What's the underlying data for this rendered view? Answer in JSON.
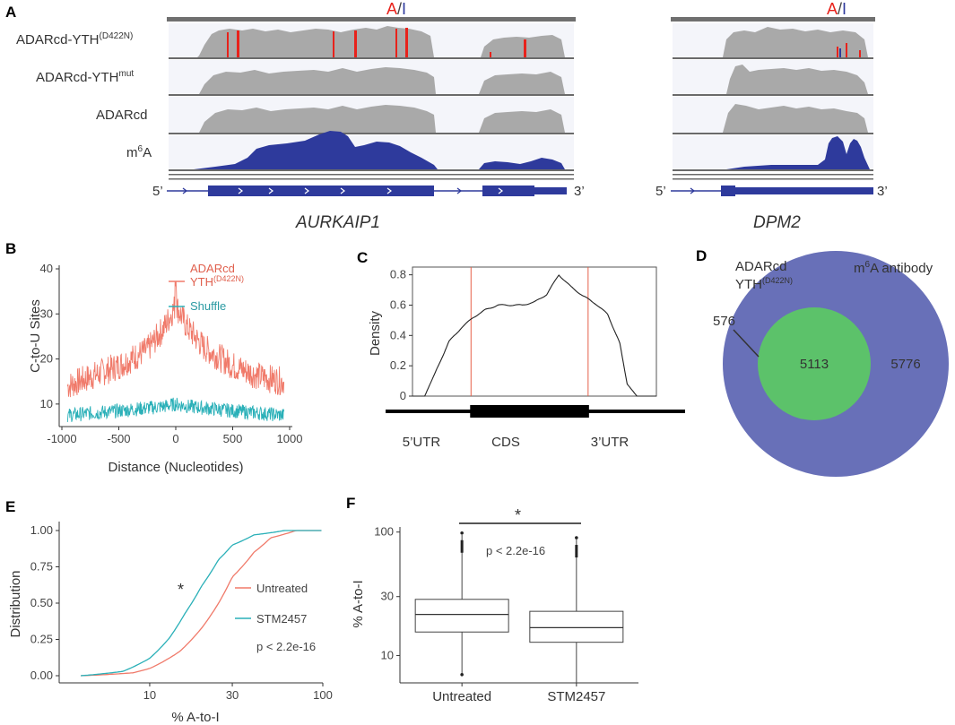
{
  "panels": {
    "A": "A",
    "B": "B",
    "C": "C",
    "D": "D",
    "E": "E",
    "F": "F"
  },
  "colors": {
    "editing_track": "#a9a9a9",
    "m6a_track": "#2e3a9c",
    "a_site": "#e8221b",
    "i_site": "#2e3a9c",
    "adarcd_line": "#f07a6a",
    "shuffle_line": "#2ab0b8",
    "untreated_line": "#f07a6a",
    "stm2457_line": "#2ab0b8",
    "venn_m6a": "#6870b8",
    "venn_overlap": "#5cc26a",
    "venn_adarcd": "#f0ea1a",
    "utr_line": "#e6604a"
  },
  "panel_a": {
    "a_letter": "A",
    "slash": "/",
    "i_letter": "I",
    "tracks": [
      {
        "label": "ADARcd-YTH",
        "sup": "(D422N)"
      },
      {
        "label": "ADARcd-YTH",
        "sup": "mut"
      },
      {
        "label": "ADARcd",
        "sup": ""
      },
      {
        "label": "m",
        "sup": "6",
        "suffix": "A"
      }
    ],
    "genes": [
      {
        "name": "AURKAIP1",
        "five": "5’",
        "three": "3’"
      },
      {
        "name": "DPM2",
        "five": "5’",
        "three": "3’"
      }
    ]
  },
  "chart_data": [
    {
      "panel": "B",
      "type": "line",
      "title": "",
      "xlabel": "Distance (Nucleotides)",
      "ylabel": "C-to-U Sites",
      "xlim": [
        -1000,
        1000
      ],
      "ylim": [
        5,
        40
      ],
      "xticks": [
        -1000,
        -500,
        0,
        500,
        1000
      ],
      "xtick_labels": [
        "-1000",
        "-500",
        "0",
        "500",
        "1000"
      ],
      "yticks": [
        10,
        20,
        30,
        40
      ],
      "ytick_labels": [
        "10",
        "20",
        "30",
        "40"
      ],
      "series": [
        {
          "name": "ADARcd",
          "name_line2": "YTH",
          "name_sup": "(D422N)",
          "x": [
            -950,
            -750,
            -500,
            -250,
            -100,
            0,
            100,
            250,
            500,
            750,
            950
          ],
          "y": [
            14,
            16,
            18.5,
            22,
            27,
            32,
            27,
            22.5,
            18.5,
            16,
            15
          ]
        },
        {
          "name": "Shuffle",
          "x": [
            -950,
            -500,
            -100,
            0,
            100,
            500,
            950
          ],
          "y": [
            7.5,
            8.5,
            9.5,
            10,
            9.5,
            8.5,
            7.5
          ]
        }
      ]
    },
    {
      "panel": "C",
      "type": "line",
      "xlabel": "",
      "ylabel": "Density",
      "ylim": [
        0,
        0.8
      ],
      "yticks": [
        0,
        0.2,
        0.4,
        0.6,
        0.8
      ],
      "ytick_labels": [
        "0",
        "0.2",
        "0.4",
        "0.6",
        "0.8"
      ],
      "regions": [
        "5’UTR",
        "CDS",
        "3’UTR"
      ],
      "x": [
        0,
        0.05,
        0.1,
        0.15,
        0.2,
        0.25,
        0.3,
        0.35,
        0.4,
        0.45,
        0.5,
        0.55,
        0.6,
        0.65,
        0.7,
        0.75,
        0.8,
        0.85,
        0.88,
        0.92,
        1
      ],
      "y": [
        0,
        0,
        0.18,
        0.36,
        0.45,
        0.52,
        0.57,
        0.6,
        0.6,
        0.6,
        0.62,
        0.67,
        0.8,
        0.72,
        0.66,
        0.61,
        0.54,
        0.35,
        0.08,
        0,
        0
      ],
      "boundaries": [
        0.24,
        0.72
      ]
    },
    {
      "panel": "D",
      "type": "venn",
      "sets": [
        {
          "name": "ADARcd",
          "name_line2": "YTH",
          "name_sup": "(D422N)",
          "only": 576
        },
        {
          "name_prefix": "m",
          "name_sup": "6",
          "name": "A antibody",
          "only": 5776
        }
      ],
      "overlap": 5113,
      "labels": {
        "left_only": "576",
        "overlap": "5113",
        "right_only": "5776"
      }
    },
    {
      "panel": "E",
      "type": "line",
      "xlabel": "% A-to-I",
      "ylabel": "Distribution",
      "xscale": "log",
      "xlim": [
        3,
        100
      ],
      "ylim": [
        0,
        1
      ],
      "xticks": [
        10,
        30,
        100
      ],
      "xtick_labels": [
        "10",
        "30",
        "100"
      ],
      "yticks": [
        0,
        0.25,
        0.5,
        0.75,
        1
      ],
      "ytick_labels": [
        "0.00",
        "0.25",
        "0.50",
        "0.75",
        "1.00"
      ],
      "series": [
        {
          "name": "Untreated",
          "x": [
            4,
            8,
            10,
            15,
            20,
            25,
            30,
            40,
            50,
            70,
            100
          ],
          "y": [
            0,
            0.02,
            0.05,
            0.17,
            0.33,
            0.5,
            0.68,
            0.85,
            0.95,
            1.0,
            1.0
          ]
        },
        {
          "name": "STM2457",
          "x": [
            4,
            7,
            10,
            13,
            16,
            20,
            25,
            30,
            40,
            60,
            100
          ],
          "y": [
            0,
            0.03,
            0.12,
            0.26,
            0.43,
            0.62,
            0.8,
            0.9,
            0.97,
            1.0,
            1.0
          ]
        }
      ],
      "annotations": [
        "*",
        "p < 2.2e-16"
      ]
    },
    {
      "panel": "F",
      "type": "boxplot",
      "xlabel": "",
      "ylabel": "% A-to-I",
      "yscale": "log",
      "ylim": [
        6,
        110
      ],
      "yticks": [
        10,
        30,
        100
      ],
      "ytick_labels": [
        "10",
        "30",
        "100"
      ],
      "categories": [
        "Untreated",
        "STM2457"
      ],
      "boxes": [
        {
          "whisker_low": 7,
          "q1": 15.5,
          "median": 21.5,
          "q3": 28.5,
          "whisker_high": 95
        },
        {
          "whisker_low": 6,
          "q1": 12.8,
          "median": 16.8,
          "q3": 22.8,
          "whisker_high": 87
        }
      ],
      "annotations": [
        "*",
        "p < 2.2e-16"
      ]
    }
  ]
}
